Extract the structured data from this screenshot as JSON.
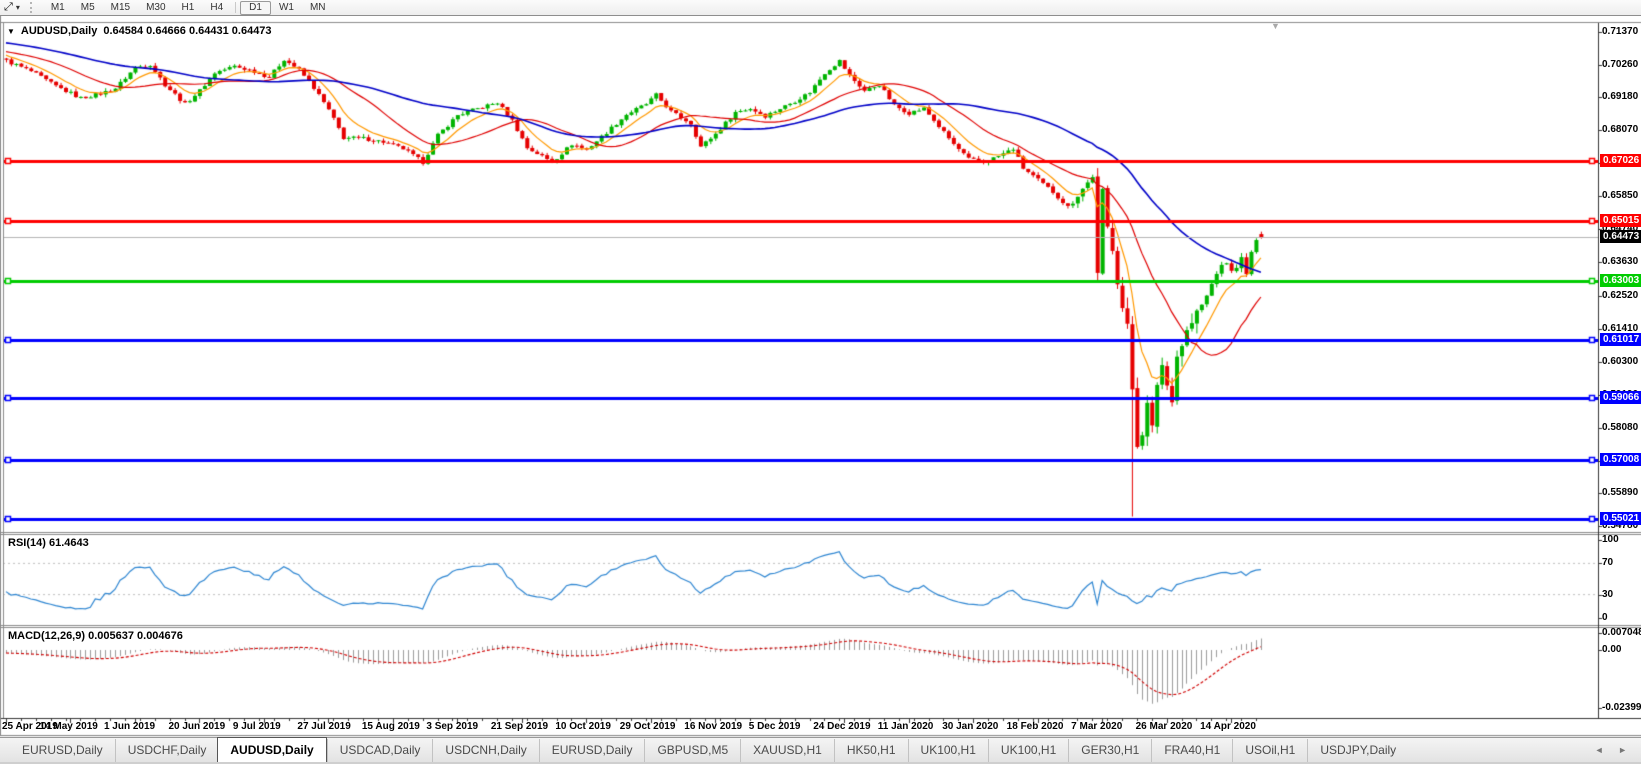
{
  "toolbar": {
    "cursor_tool_glyph": "⤢",
    "dropdown_glyph": "▾",
    "timeframes": [
      "M1",
      "M5",
      "M15",
      "M30",
      "H1",
      "H4",
      "D1",
      "W1",
      "MN"
    ],
    "active_timeframe": "D1"
  },
  "chart": {
    "symbol_label": "AUDUSD,Daily",
    "ohlc_text": "0.64584 0.64666 0.64431 0.64473",
    "title_dropdown_glyph": "▼",
    "shift_marker_glyph": "▼",
    "price_axis_ticks": [
      "0.71370",
      "0.70260",
      "0.69180",
      "0.68070",
      "0.66960",
      "0.65850",
      "0.64740",
      "0.63630",
      "0.62520",
      "0.61410",
      "0.60300",
      "0.59190",
      "0.58080",
      "0.56970",
      "0.55890",
      "0.54780"
    ],
    "date_ticks": [
      "25 Apr 2019",
      "14 May 2019",
      "1 Jun 2019",
      "20 Jun 2019",
      "9 Jul 2019",
      "27 Jul 2019",
      "15 Aug 2019",
      "3 Sep 2019",
      "21 Sep 2019",
      "10 Oct 2019",
      "29 Oct 2019",
      "16 Nov 2019",
      "5 Dec 2019",
      "24 Dec 2019",
      "11 Jan 2020",
      "30 Jan 2020",
      "18 Feb 2020",
      "7 Mar 2020",
      "26 Mar 2020",
      "14 Apr 2020"
    ],
    "current_price_label": "0.64473",
    "colors": {
      "bull": "#00b400",
      "bear": "#e60000",
      "ma_fast": "#ff9900",
      "ma_mid": "#e00000",
      "ma_slow": "#0000c8",
      "level_red": "#ff0000",
      "level_green": "#00cc00",
      "level_blue": "#0000ff",
      "current_price_line": "#b4b4b4",
      "current_price_box": "#000000",
      "rsi_line": "#2e86d2",
      "rsi_levels": "#c0c0c0",
      "macd_bars": "#9c9c9c",
      "macd_signal": "#d00000"
    }
  },
  "rsi": {
    "label": "RSI(14) 61.4643",
    "axis_labels": [
      "100",
      "70",
      "30",
      "0"
    ]
  },
  "macd": {
    "label": "MACD(12,26,9) 0.005637 0.004676",
    "axis_labels": [
      "0.007048",
      "0.00",
      "-0.023998"
    ]
  },
  "tabs": {
    "items": [
      {
        "label": "EURUSD,Daily",
        "active": false
      },
      {
        "label": "USDCHF,Daily",
        "active": false
      },
      {
        "label": "AUDUSD,Daily",
        "active": true
      },
      {
        "label": "USDCAD,Daily",
        "active": false
      },
      {
        "label": "USDCNH,Daily",
        "active": false
      },
      {
        "label": "EURUSD,Daily",
        "active": false
      },
      {
        "label": "GBPUSD,M5",
        "active": false
      },
      {
        "label": "XAUUSD,H1",
        "active": false
      },
      {
        "label": "HK50,H1",
        "active": false
      },
      {
        "label": "UK100,H1",
        "active": false
      },
      {
        "label": "UK100,H1",
        "active": false
      },
      {
        "label": "GER30,H1",
        "active": false
      },
      {
        "label": "FRA40,H1",
        "active": false
      },
      {
        "label": "USOil,H1",
        "active": false
      },
      {
        "label": "USDJPY,Daily",
        "active": false
      }
    ],
    "nav_glyphs": "◄ ►"
  },
  "chart_data": {
    "type": "candlestick",
    "symbol": "AUDUSD",
    "timeframe": "Daily",
    "current_ohlc": {
      "open": 0.64584,
      "high": 0.64666,
      "low": 0.64431,
      "close": 0.64473
    },
    "current_price": 0.64473,
    "y_axis_tick_values": [
      0.7137,
      0.7026,
      0.6918,
      0.6807,
      0.6696,
      0.6585,
      0.6474,
      0.6363,
      0.6252,
      0.6141,
      0.603,
      0.5919,
      0.5808,
      0.5697,
      0.5589,
      0.5478
    ],
    "horizontal_lines": [
      {
        "price": 0.67026,
        "color": "#ff0000"
      },
      {
        "price": 0.65015,
        "color": "#ff0000"
      },
      {
        "price": 0.63003,
        "color": "#00cc00"
      },
      {
        "price": 0.61017,
        "color": "#0000ff"
      },
      {
        "price": 0.59066,
        "color": "#0000ff"
      },
      {
        "price": 0.57008,
        "color": "#0000ff"
      },
      {
        "price": 0.55021,
        "color": "#0000ff"
      }
    ],
    "visible_candles": 254,
    "close_path_anchors": [
      [
        0,
        0.704
      ],
      [
        5,
        0.7005
      ],
      [
        10,
        0.6955
      ],
      [
        15,
        0.6915
      ],
      [
        19,
        0.693
      ],
      [
        22,
        0.6948
      ],
      [
        26,
        0.7018
      ],
      [
        29,
        0.7028
      ],
      [
        32,
        0.696
      ],
      [
        36,
        0.6895
      ],
      [
        39,
        0.694
      ],
      [
        42,
        0.7
      ],
      [
        46,
        0.7022
      ],
      [
        50,
        0.7005
      ],
      [
        53,
        0.6985
      ],
      [
        56,
        0.7045
      ],
      [
        59,
        0.701
      ],
      [
        62,
        0.695
      ],
      [
        65,
        0.6875
      ],
      [
        68,
        0.6782
      ],
      [
        72,
        0.678
      ],
      [
        76,
        0.6768
      ],
      [
        80,
        0.6745
      ],
      [
        84,
        0.67
      ],
      [
        87,
        0.679
      ],
      [
        91,
        0.6858
      ],
      [
        96,
        0.6885
      ],
      [
        99,
        0.69
      ],
      [
        102,
        0.684
      ],
      [
        105,
        0.6748
      ],
      [
        108,
        0.672
      ],
      [
        110,
        0.67
      ],
      [
        114,
        0.676
      ],
      [
        117,
        0.6742
      ],
      [
        121,
        0.68
      ],
      [
        125,
        0.686
      ],
      [
        129,
        0.6895
      ],
      [
        131,
        0.6925
      ],
      [
        134,
        0.687
      ],
      [
        138,
        0.683
      ],
      [
        140,
        0.6752
      ],
      [
        143,
        0.6795
      ],
      [
        147,
        0.6868
      ],
      [
        150,
        0.688
      ],
      [
        153,
        0.6855
      ],
      [
        156,
        0.688
      ],
      [
        159,
        0.6905
      ],
      [
        162,
        0.6935
      ],
      [
        165,
        0.7
      ],
      [
        168,
        0.704
      ],
      [
        170,
        0.699
      ],
      [
        173,
        0.694
      ],
      [
        176,
        0.696
      ],
      [
        179,
        0.689
      ],
      [
        182,
        0.6865
      ],
      [
        185,
        0.688
      ],
      [
        188,
        0.682
      ],
      [
        191,
        0.676
      ],
      [
        194,
        0.671
      ],
      [
        197,
        0.67
      ],
      [
        200,
        0.672
      ],
      [
        203,
        0.6745
      ],
      [
        205,
        0.668
      ],
      [
        208,
        0.664
      ],
      [
        211,
        0.66
      ],
      [
        214,
        0.655
      ],
      [
        216,
        0.6592
      ],
      [
        218,
        0.663
      ],
      [
        219,
        0.6656
      ],
      [
        220,
        0.632
      ],
      [
        221,
        0.66
      ],
      [
        222,
        0.648
      ],
      [
        223,
        0.642
      ],
      [
        224,
        0.631
      ],
      [
        225,
        0.621
      ],
      [
        226,
        0.614
      ],
      [
        227,
        0.594
      ],
      [
        228,
        0.576
      ],
      [
        229,
        0.58
      ],
      [
        230,
        0.588
      ],
      [
        231,
        0.58
      ],
      [
        232,
        0.596
      ],
      [
        233,
        0.602
      ],
      [
        234,
        0.595
      ],
      [
        235,
        0.5915
      ],
      [
        236,
        0.605
      ],
      [
        238,
        0.613
      ],
      [
        240,
        0.619
      ],
      [
        242,
        0.625
      ],
      [
        244,
        0.633
      ],
      [
        246,
        0.6365
      ],
      [
        247,
        0.633
      ],
      [
        249,
        0.6375
      ],
      [
        250,
        0.632
      ],
      [
        251,
        0.64
      ],
      [
        252,
        0.643
      ],
      [
        253,
        0.64473
      ]
    ],
    "volatility_zones": [
      {
        "from": 0,
        "to": 214,
        "v": 0.0011
      },
      {
        "from": 215,
        "to": 222,
        "v": 0.0024
      },
      {
        "from": 223,
        "to": 240,
        "v": 0.0042
      },
      {
        "from": 241,
        "to": 253,
        "v": 0.0016
      }
    ],
    "candle_overrides": [
      {
        "i": 220,
        "h": 0.668,
        "l": 0.63
      },
      {
        "i": 227,
        "l": 0.551
      },
      {
        "i": 253,
        "o": 0.64584,
        "h": 0.64666,
        "l": 0.64431,
        "c": 0.64473
      }
    ],
    "moving_averages": [
      {
        "name": "fast",
        "period": 8,
        "color": "#ff9900"
      },
      {
        "name": "medium",
        "period": 20,
        "color": "#e00000"
      },
      {
        "name": "slow",
        "period": 50,
        "color": "#0000c8"
      }
    ],
    "rsi": {
      "period": 14,
      "current": 61.4643,
      "overbought": 70,
      "oversold": 30,
      "scale_min": 0,
      "scale_max": 100
    },
    "macd": {
      "fast": 12,
      "slow": 26,
      "signal": 9,
      "macd_current": 0.005637,
      "signal_current": 0.004676,
      "axis_max": 0.007048,
      "axis_min": -0.023998
    }
  }
}
